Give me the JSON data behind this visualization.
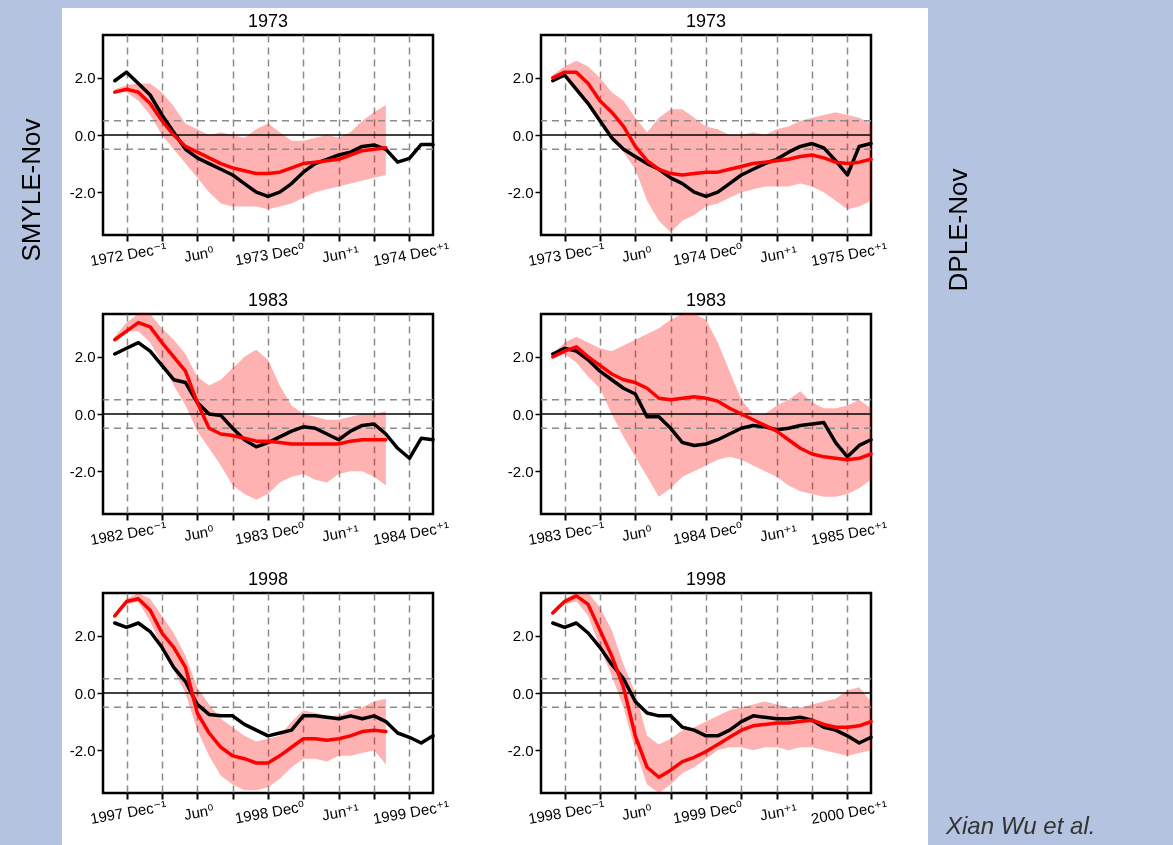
{
  "chart_data": [
    {
      "type": "line",
      "title": "1973",
      "ylabel": "SMYLE-Nov",
      "ylim": [
        -3.5,
        3.5
      ],
      "categories": [
        null,
        "1972 Dec⁻¹",
        null,
        null,
        null,
        null,
        null,
        "Jun⁰",
        null,
        null,
        null,
        null,
        null,
        "1973 Dec⁰",
        null,
        null,
        null,
        null,
        null,
        "Jun⁺¹",
        null,
        null,
        null,
        null,
        null,
        "1974 Dec⁺¹",
        null,
        null
      ],
      "yticks": [
        {
          "value": -2,
          "label": "-2.0"
        },
        {
          "value": 0,
          "label": "0.0"
        },
        {
          "value": 2,
          "label": "2.0"
        }
      ],
      "grid": "x",
      "ref_lines": [
        {
          "axis": "y",
          "value": 0,
          "color": "#000000",
          "line_style": "solid"
        },
        {
          "axis": "y",
          "value": 0.5,
          "color": "#8c8c8c",
          "line_style": "dashed"
        },
        {
          "axis": "y",
          "value": -0.5,
          "color": "#8c8c8c",
          "line_style": "dashed"
        }
      ],
      "series": [
        {
          "color": "#000000",
          "values": [
            1.9,
            2.2,
            1.8,
            1.4,
            0.7,
            0.1,
            -0.5,
            -0.8,
            -1.0,
            -1.2,
            -1.4,
            -1.7,
            -2.0,
            -2.15,
            -2.0,
            -1.7,
            -1.3,
            -1.0,
            -0.85,
            -0.7,
            -0.6,
            -0.4,
            -0.35,
            -0.5,
            -0.95,
            -0.82,
            -0.33,
            -0.33
          ]
        },
        {
          "color": "#ff0000",
          "values": [
            1.5,
            1.6,
            1.5,
            1.1,
            0.5,
            0.0,
            -0.4,
            -0.6,
            -0.8,
            -1.0,
            -1.15,
            -1.25,
            -1.35,
            -1.35,
            -1.3,
            -1.15,
            -1.0,
            -0.95,
            -0.9,
            -0.85,
            -0.7,
            -0.55,
            -0.5,
            -0.45,
            null,
            null,
            null,
            null
          ],
          "lower": [
            1.5,
            1.5,
            1.2,
            0.7,
            0.0,
            -0.5,
            -1.0,
            -1.5,
            -2.0,
            -2.4,
            -2.5,
            -2.5,
            -2.5,
            -2.6,
            -2.5,
            -2.4,
            -2.2,
            -2.0,
            -1.9,
            -1.8,
            -1.7,
            -1.6,
            -1.5,
            -1.4,
            null,
            null,
            null,
            null
          ],
          "upper": [
            1.6,
            1.75,
            1.8,
            1.8,
            1.5,
            1.0,
            0.4,
            0.2,
            0.0,
            0.1,
            0.0,
            -0.1,
            0.2,
            0.4,
            0.1,
            -0.2,
            -0.2,
            -0.1,
            0.0,
            -0.1,
            0.1,
            0.5,
            0.8,
            1.05,
            null,
            null,
            null,
            null
          ]
        }
      ]
    },
    {
      "type": "line",
      "title": "1973",
      "y2label": "DPLE-Nov",
      "ylim": [
        -3.5,
        3.5
      ],
      "categories": [
        null,
        "1973 Dec⁻¹",
        null,
        null,
        null,
        null,
        null,
        "Jun⁰",
        null,
        null,
        null,
        null,
        null,
        "1974 Dec⁰",
        null,
        null,
        null,
        null,
        null,
        "Jun⁺¹",
        null,
        null,
        null,
        null,
        null,
        "1975 Dec⁺¹",
        null,
        null
      ],
      "yticks": [
        {
          "value": -2,
          "label": "-2.0"
        },
        {
          "value": 0,
          "label": "0.0"
        },
        {
          "value": 2,
          "label": "2.0"
        }
      ],
      "grid": "x",
      "ref_lines": [
        {
          "axis": "y",
          "value": 0,
          "color": "#000000",
          "line_style": "solid"
        },
        {
          "axis": "y",
          "value": 0.5,
          "color": "#8c8c8c",
          "line_style": "dashed"
        },
        {
          "axis": "y",
          "value": -0.5,
          "color": "#8c8c8c",
          "line_style": "dashed"
        }
      ],
      "series": [
        {
          "color": "#000000",
          "values": [
            1.9,
            2.1,
            1.6,
            1.1,
            0.5,
            -0.1,
            -0.5,
            -0.75,
            -1.0,
            -1.2,
            -1.5,
            -1.7,
            -2.0,
            -2.15,
            -2.0,
            -1.7,
            -1.4,
            -1.2,
            -1.0,
            -0.85,
            -0.6,
            -0.4,
            -0.3,
            -0.45,
            -0.9,
            -1.4,
            -0.4,
            -0.3
          ]
        },
        {
          "color": "#ff0000",
          "values": [
            2.0,
            2.2,
            2.2,
            1.8,
            1.2,
            0.8,
            0.3,
            -0.4,
            -0.9,
            -1.2,
            -1.35,
            -1.4,
            -1.35,
            -1.3,
            -1.3,
            -1.2,
            -1.1,
            -1.0,
            -0.95,
            -0.9,
            -0.85,
            -0.75,
            -0.7,
            -0.8,
            -0.95,
            -1.0,
            -0.95,
            -0.85
          ],
          "lower": [
            1.9,
            2.0,
            1.6,
            1.0,
            0.4,
            -0.2,
            -0.6,
            -1.2,
            -2.3,
            -3.0,
            -3.4,
            -3.0,
            -2.8,
            -2.5,
            -2.4,
            -2.2,
            -2.0,
            -1.9,
            -1.8,
            -1.8,
            -1.8,
            -1.7,
            -1.8,
            -2.0,
            -2.3,
            -2.6,
            -2.5,
            -2.3
          ],
          "upper": [
            2.1,
            2.4,
            2.6,
            2.4,
            2.0,
            1.5,
            1.2,
            0.6,
            0.1,
            0.6,
            0.9,
            0.9,
            0.6,
            0.3,
            0.2,
            0.0,
            0.0,
            0.1,
            0.0,
            0.2,
            0.3,
            0.5,
            0.6,
            0.7,
            0.8,
            0.7,
            0.6,
            0.4
          ]
        }
      ]
    },
    {
      "type": "line",
      "title": "1983",
      "ylim": [
        -3.5,
        3.5
      ],
      "categories": [
        null,
        "1982 Dec⁻¹",
        null,
        null,
        null,
        null,
        null,
        "Jun⁰",
        null,
        null,
        null,
        null,
        null,
        "1983 Dec⁰",
        null,
        null,
        null,
        null,
        null,
        "Jun⁺¹",
        null,
        null,
        null,
        null,
        null,
        "1984 Dec⁺¹",
        null,
        null
      ],
      "yticks": [
        {
          "value": -2,
          "label": "-2.0"
        },
        {
          "value": 0,
          "label": "0.0"
        },
        {
          "value": 2,
          "label": "2.0"
        }
      ],
      "grid": "x",
      "ref_lines": [
        {
          "axis": "y",
          "value": 0,
          "color": "#000000",
          "line_style": "solid"
        },
        {
          "axis": "y",
          "value": 0.5,
          "color": "#8c8c8c",
          "line_style": "dashed"
        },
        {
          "axis": "y",
          "value": -0.5,
          "color": "#8c8c8c",
          "line_style": "dashed"
        }
      ],
      "series": [
        {
          "color": "#000000",
          "values": [
            2.1,
            2.3,
            2.5,
            2.2,
            1.7,
            1.2,
            1.1,
            0.4,
            0.0,
            -0.05,
            -0.5,
            -0.9,
            -1.15,
            -1.0,
            -0.8,
            -0.6,
            -0.45,
            -0.5,
            -0.7,
            -0.9,
            -0.6,
            -0.4,
            -0.35,
            -0.7,
            -1.2,
            -1.55,
            -0.85,
            -0.9
          ]
        },
        {
          "color": "#ff0000",
          "values": [
            2.6,
            2.9,
            3.2,
            3.05,
            2.5,
            2.0,
            1.5,
            0.4,
            -0.5,
            -0.7,
            -0.75,
            -0.85,
            -0.95,
            -0.95,
            -1.0,
            -1.05,
            -1.05,
            -1.05,
            -1.05,
            -1.05,
            -0.95,
            -0.9,
            -0.9,
            -0.9,
            null,
            null,
            null,
            null
          ],
          "lower": [
            2.6,
            2.9,
            2.9,
            2.5,
            1.8,
            1.0,
            0.3,
            -0.6,
            -1.2,
            -1.8,
            -2.5,
            -2.8,
            -3.0,
            -2.8,
            -2.4,
            -2.2,
            -2.1,
            -2.3,
            -2.4,
            -2.1,
            -2.0,
            -2.0,
            -2.2,
            -2.5,
            null,
            null,
            null,
            null
          ],
          "upper": [
            2.7,
            3.2,
            3.5,
            3.5,
            3.0,
            2.6,
            2.1,
            1.3,
            1.0,
            1.2,
            1.6,
            2.0,
            2.25,
            1.9,
            1.0,
            0.3,
            0.0,
            -0.1,
            -0.2,
            -0.2,
            -0.1,
            0.0,
            0.0,
            0.1,
            null,
            null,
            null,
            null
          ]
        }
      ]
    },
    {
      "type": "line",
      "title": "1983",
      "ylim": [
        -3.5,
        3.5
      ],
      "categories": [
        null,
        "1983 Dec⁻¹",
        null,
        null,
        null,
        null,
        null,
        "Jun⁰",
        null,
        null,
        null,
        null,
        null,
        "1984 Dec⁰",
        null,
        null,
        null,
        null,
        null,
        "Jun⁺¹",
        null,
        null,
        null,
        null,
        null,
        "1985 Dec⁺¹",
        null,
        null
      ],
      "yticks": [
        {
          "value": -2,
          "label": "-2.0"
        },
        {
          "value": 0,
          "label": "0.0"
        },
        {
          "value": 2,
          "label": "2.0"
        }
      ],
      "grid": "x",
      "ref_lines": [
        {
          "axis": "y",
          "value": 0,
          "color": "#000000",
          "line_style": "solid"
        },
        {
          "axis": "y",
          "value": 0.5,
          "color": "#8c8c8c",
          "line_style": "dashed"
        },
        {
          "axis": "y",
          "value": -0.5,
          "color": "#8c8c8c",
          "line_style": "dashed"
        }
      ],
      "series": [
        {
          "color": "#000000",
          "values": [
            2.1,
            2.3,
            2.2,
            1.9,
            1.5,
            1.2,
            0.9,
            0.7,
            -0.1,
            -0.1,
            -0.5,
            -1.0,
            -1.1,
            -1.05,
            -0.9,
            -0.7,
            -0.5,
            -0.4,
            -0.45,
            -0.55,
            -0.5,
            -0.4,
            -0.35,
            -0.3,
            -1.0,
            -1.5,
            -1.1,
            -0.9
          ]
        },
        {
          "color": "#ff0000",
          "values": [
            2.0,
            2.2,
            2.35,
            2.0,
            1.7,
            1.4,
            1.2,
            1.1,
            0.9,
            0.55,
            0.5,
            0.55,
            0.6,
            0.55,
            0.45,
            0.2,
            0.0,
            -0.2,
            -0.4,
            -0.6,
            -0.9,
            -1.2,
            -1.4,
            -1.5,
            -1.55,
            -1.6,
            -1.55,
            -1.4
          ],
          "lower": [
            2.0,
            2.1,
            1.8,
            1.3,
            0.9,
            0.0,
            -0.8,
            -1.5,
            -2.2,
            -2.9,
            -2.6,
            -2.2,
            -2.0,
            -1.8,
            -1.6,
            -1.5,
            -1.6,
            -1.8,
            -2.0,
            -2.2,
            -2.5,
            -2.7,
            -2.8,
            -2.9,
            -2.9,
            -2.8,
            -2.6,
            -2.3
          ],
          "upper": [
            2.1,
            2.5,
            2.7,
            2.5,
            2.3,
            2.2,
            2.4,
            2.6,
            2.8,
            3.0,
            3.3,
            3.5,
            3.5,
            3.3,
            2.5,
            1.5,
            0.5,
            0.0,
            0.0,
            0.3,
            0.5,
            0.8,
            0.4,
            0.2,
            0.2,
            0.3,
            0.5,
            0.2
          ]
        }
      ]
    },
    {
      "type": "line",
      "title": "1998",
      "ylim": [
        -3.5,
        3.5
      ],
      "categories": [
        null,
        "1997 Dec⁻¹",
        null,
        null,
        null,
        null,
        null,
        "Jun⁰",
        null,
        null,
        null,
        null,
        null,
        "1998 Dec⁰",
        null,
        null,
        null,
        null,
        null,
        "Jun⁺¹",
        null,
        null,
        null,
        null,
        null,
        "1999 Dec⁺¹",
        null,
        null
      ],
      "yticks": [
        {
          "value": -2,
          "label": "-2.0"
        },
        {
          "value": 0,
          "label": "0.0"
        },
        {
          "value": 2,
          "label": "2.0"
        }
      ],
      "grid": "x",
      "ref_lines": [
        {
          "axis": "y",
          "value": 0,
          "color": "#000000",
          "line_style": "solid"
        },
        {
          "axis": "y",
          "value": 0.5,
          "color": "#8c8c8c",
          "line_style": "dashed"
        },
        {
          "axis": "y",
          "value": -0.5,
          "color": "#8c8c8c",
          "line_style": "dashed"
        }
      ],
      "series": [
        {
          "color": "#000000",
          "values": [
            2.45,
            2.3,
            2.45,
            2.15,
            1.6,
            0.9,
            0.4,
            -0.4,
            -0.75,
            -0.8,
            -0.8,
            -1.1,
            -1.3,
            -1.5,
            -1.4,
            -1.3,
            -0.8,
            -0.8,
            -0.85,
            -0.9,
            -0.8,
            -0.9,
            -0.8,
            -1.0,
            -1.4,
            -1.55,
            -1.75,
            -1.5
          ]
        },
        {
          "color": "#ff0000",
          "values": [
            2.7,
            3.2,
            3.3,
            2.9,
            2.1,
            1.6,
            0.9,
            -0.7,
            -1.4,
            -1.9,
            -2.2,
            -2.3,
            -2.45,
            -2.45,
            -2.2,
            -1.9,
            -1.6,
            -1.6,
            -1.65,
            -1.6,
            -1.5,
            -1.35,
            -1.3,
            -1.35,
            null,
            null,
            null,
            null
          ],
          "lower": [
            2.7,
            3.1,
            3.2,
            2.5,
            1.6,
            0.8,
            0.0,
            -1.3,
            -2.2,
            -2.9,
            -3.2,
            -3.4,
            -3.4,
            -3.3,
            -3.0,
            -2.6,
            -2.3,
            -2.3,
            -2.4,
            -2.2,
            -2.2,
            -2.1,
            -2.0,
            -2.5,
            null,
            null,
            null,
            null
          ],
          "upper": [
            2.8,
            3.3,
            3.5,
            3.3,
            2.7,
            2.1,
            1.3,
            0.2,
            -0.4,
            -0.9,
            -1.2,
            -1.5,
            -1.7,
            -1.6,
            -1.5,
            -1.0,
            -0.6,
            -0.7,
            -0.8,
            -0.8,
            -0.6,
            -0.5,
            -0.3,
            -0.2,
            null,
            null,
            null,
            null
          ]
        }
      ]
    },
    {
      "type": "line",
      "title": "1998",
      "ylim": [
        -3.5,
        3.5
      ],
      "categories": [
        null,
        "1998 Dec⁻¹",
        null,
        null,
        null,
        null,
        null,
        "Jun⁰",
        null,
        null,
        null,
        null,
        null,
        "1999 Dec⁰",
        null,
        null,
        null,
        null,
        null,
        "Jun⁺¹",
        null,
        null,
        null,
        null,
        null,
        "2000 Dec⁺¹",
        null,
        null
      ],
      "yticks": [
        {
          "value": -2,
          "label": "-2.0"
        },
        {
          "value": 0,
          "label": "0.0"
        },
        {
          "value": 2,
          "label": "2.0"
        }
      ],
      "grid": "x",
      "ref_lines": [
        {
          "axis": "y",
          "value": 0,
          "color": "#000000",
          "line_style": "solid"
        },
        {
          "axis": "y",
          "value": 0.5,
          "color": "#8c8c8c",
          "line_style": "dashed"
        },
        {
          "axis": "y",
          "value": -0.5,
          "color": "#8c8c8c",
          "line_style": "dashed"
        }
      ],
      "annotations": [
        "Xian Wu et al."
      ],
      "series": [
        {
          "color": "#000000",
          "values": [
            2.45,
            2.3,
            2.45,
            2.1,
            1.6,
            1.0,
            0.5,
            -0.3,
            -0.7,
            -0.8,
            -0.8,
            -1.2,
            -1.3,
            -1.5,
            -1.5,
            -1.3,
            -1.0,
            -0.8,
            -0.85,
            -0.9,
            -0.9,
            -0.85,
            -0.95,
            -1.2,
            -1.3,
            -1.5,
            -1.75,
            -1.55
          ]
        },
        {
          "color": "#ff0000",
          "values": [
            2.8,
            3.2,
            3.4,
            3.1,
            2.2,
            1.3,
            0.2,
            -1.5,
            -2.6,
            -2.95,
            -2.7,
            -2.4,
            -2.25,
            -2.05,
            -1.8,
            -1.55,
            -1.3,
            -1.15,
            -1.1,
            -1.05,
            -1.05,
            -1.0,
            -0.95,
            -1.1,
            -1.2,
            -1.2,
            -1.15,
            -1.0
          ],
          "lower": [
            2.8,
            3.1,
            3.2,
            2.7,
            1.6,
            0.6,
            -0.5,
            -2.0,
            -3.2,
            -3.5,
            -3.2,
            -2.8,
            -2.6,
            -2.3,
            -2.0,
            -1.9,
            -1.9,
            -2.0,
            -1.9,
            -1.9,
            -2.0,
            -1.9,
            -1.9,
            -2.0,
            -2.1,
            -2.2,
            -2.1,
            -2.0
          ],
          "upper": [
            2.9,
            3.3,
            3.5,
            3.5,
            3.0,
            2.2,
            1.0,
            0.0,
            -1.5,
            -1.8,
            -1.6,
            -1.3,
            -1.2,
            -1.0,
            -0.8,
            -0.6,
            -0.5,
            -0.4,
            -0.3,
            -0.4,
            -0.5,
            -0.5,
            -0.4,
            -0.3,
            -0.2,
            0.1,
            0.2,
            -0.3
          ]
        }
      ]
    }
  ]
}
